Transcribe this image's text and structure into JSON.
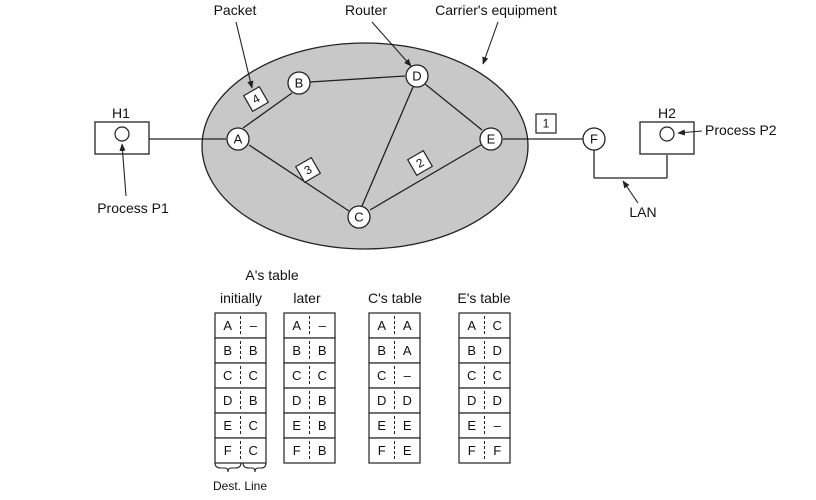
{
  "labels": {
    "packet": "Packet",
    "router": "Router",
    "carrier": "Carrier's equipment",
    "h1": "H1",
    "h2": "H2",
    "process_p1": "Process P1",
    "process_p2": "Process P2",
    "lan": "LAN"
  },
  "nodes": {
    "A": "A",
    "B": "B",
    "C": "C",
    "D": "D",
    "E": "E",
    "F": "F"
  },
  "packets": [
    "4",
    "3",
    "2",
    "1"
  ],
  "tables": {
    "a_title": "A's table",
    "a_initially": {
      "caption": "initially",
      "rows": [
        [
          "A",
          "–"
        ],
        [
          "B",
          "B"
        ],
        [
          "C",
          "C"
        ],
        [
          "D",
          "B"
        ],
        [
          "E",
          "C"
        ],
        [
          "F",
          "C"
        ]
      ]
    },
    "a_later": {
      "caption": "later",
      "rows": [
        [
          "A",
          "–"
        ],
        [
          "B",
          "B"
        ],
        [
          "C",
          "C"
        ],
        [
          "D",
          "B"
        ],
        [
          "E",
          "B"
        ],
        [
          "F",
          "B"
        ]
      ]
    },
    "c_table": {
      "caption": "C's table",
      "rows": [
        [
          "A",
          "A"
        ],
        [
          "B",
          "A"
        ],
        [
          "C",
          "–"
        ],
        [
          "D",
          "D"
        ],
        [
          "E",
          "E"
        ],
        [
          "F",
          "E"
        ]
      ]
    },
    "e_table": {
      "caption": "E's table",
      "rows": [
        [
          "A",
          "C"
        ],
        [
          "B",
          "D"
        ],
        [
          "C",
          "C"
        ],
        [
          "D",
          "D"
        ],
        [
          "E",
          "–"
        ],
        [
          "F",
          "F"
        ]
      ]
    },
    "dest_line": "Dest. Line"
  },
  "colors": {
    "cloud_fill": "#c8c8c8",
    "stroke": "#222222",
    "background": "#ffffff"
  }
}
